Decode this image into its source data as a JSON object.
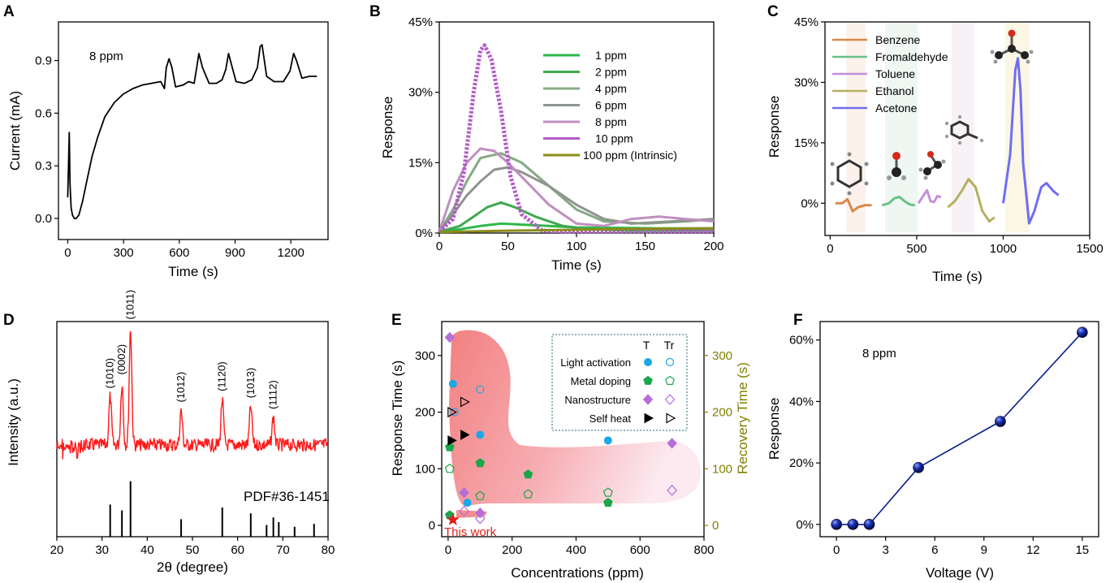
{
  "chart_data": [
    {
      "panel": "A",
      "type": "line",
      "xlabel": "Time (s)",
      "ylabel": "Current (mA)",
      "annotation": "8 ppm",
      "xticks": [
        "0",
        "300",
        "600",
        "900",
        "1200"
      ],
      "yticks": [
        "0.0",
        "0.3",
        "0.6",
        "0.9"
      ],
      "xlim": [
        -50,
        1400
      ],
      "ylim": [
        -0.12,
        1.12
      ],
      "series": [
        {
          "color": "#000000",
          "x": [
            0,
            5,
            8,
            12,
            18,
            25,
            35,
            45,
            60,
            80,
            100,
            130,
            160,
            200,
            250,
            300,
            350,
            400,
            450,
            500,
            520,
            530,
            545,
            560,
            580,
            620,
            650,
            680,
            695,
            705,
            725,
            760,
            800,
            830,
            850,
            865,
            880,
            905,
            950,
            990,
            1020,
            1035,
            1045,
            1070,
            1110,
            1160,
            1195,
            1215,
            1230,
            1260,
            1300,
            1340
          ],
          "y": [
            0.12,
            0.35,
            0.49,
            0.2,
            0.06,
            0.02,
            0.0,
            0.0,
            0.02,
            0.1,
            0.2,
            0.35,
            0.46,
            0.58,
            0.66,
            0.71,
            0.74,
            0.76,
            0.77,
            0.78,
            0.74,
            0.86,
            0.91,
            0.86,
            0.75,
            0.76,
            0.78,
            0.77,
            0.87,
            0.94,
            0.86,
            0.77,
            0.77,
            0.79,
            0.85,
            0.94,
            0.88,
            0.78,
            0.77,
            0.79,
            0.86,
            0.98,
            0.99,
            0.81,
            0.78,
            0.78,
            0.84,
            0.94,
            0.9,
            0.8,
            0.81,
            0.81
          ]
        }
      ]
    },
    {
      "panel": "B",
      "type": "line",
      "xlabel": "Time (s)",
      "ylabel": "Response",
      "xticks": [
        "0",
        "50",
        "100",
        "150",
        "200"
      ],
      "yticks": [
        "0%",
        "15%",
        "30%",
        "45%"
      ],
      "xlim": [
        0,
        200
      ],
      "ylim": [
        0,
        45
      ],
      "series": [
        {
          "name": "1  ppm",
          "color": "#2eb84a",
          "x": [
            0,
            15,
            30,
            45,
            60,
            80,
            100,
            130,
            160,
            200
          ],
          "y": [
            0.3,
            0.8,
            1.5,
            2.0,
            1.8,
            1.5,
            1.2,
            1.1,
            1.0,
            1.0
          ]
        },
        {
          "name": "2  ppm",
          "color": "#3fa84f",
          "x": [
            0,
            15,
            25,
            35,
            45,
            55,
            70,
            90,
            110,
            140,
            200
          ],
          "y": [
            0.3,
            1.5,
            3.5,
            5.5,
            6.5,
            5.5,
            3.5,
            1.5,
            0.8,
            0.5,
            0.5
          ]
        },
        {
          "name": "4  ppm",
          "color": "#86a886",
          "x": [
            0,
            10,
            20,
            30,
            45,
            60,
            80,
            100,
            120,
            150,
            180,
            200
          ],
          "y": [
            0.3,
            5,
            11,
            16,
            17,
            15,
            10,
            5,
            2.5,
            2,
            2.5,
            3
          ]
        },
        {
          "name": "6  ppm",
          "color": "#8e948e",
          "x": [
            0,
            10,
            20,
            30,
            40,
            50,
            60,
            80,
            100,
            120,
            140,
            170,
            200
          ],
          "y": [
            0.3,
            4,
            8,
            11,
            13.5,
            14,
            13,
            10,
            6,
            3,
            2,
            2.5,
            3
          ]
        },
        {
          "name": "8  ppm",
          "color": "#bf8fbf",
          "x": [
            0,
            10,
            20,
            30,
            40,
            50,
            60,
            80,
            100,
            120,
            140,
            160,
            180,
            200
          ],
          "y": [
            0.3,
            9,
            15,
            18,
            17.5,
            15,
            12,
            6,
            2,
            1.5,
            3,
            3.5,
            3,
            2.5
          ]
        },
        {
          "name": "10 ppm",
          "color": "#b25cc8",
          "x": [
            0,
            10,
            18,
            25,
            30,
            33,
            38,
            45,
            52,
            60,
            75,
            100,
            200
          ],
          "y": [
            0.3,
            3,
            13,
            30,
            39,
            40,
            37,
            26,
            12,
            4,
            0.5,
            0.3,
            0.3
          ]
        },
        {
          "name": "100 ppm (Intrinsic)",
          "color": "#8c8c1a",
          "x": [
            0,
            50,
            100,
            150,
            200
          ],
          "y": [
            0.2,
            0.5,
            0.7,
            0.9,
            1.0
          ]
        }
      ]
    },
    {
      "panel": "C",
      "type": "line",
      "xlabel": "Time (s)",
      "ylabel": "Response",
      "xticks": [
        "0",
        "500",
        "1000",
        "1500"
      ],
      "yticks": [
        "0%",
        "15%",
        "30%",
        "45%"
      ],
      "xlim": [
        -30,
        1500
      ],
      "ylim": [
        -8,
        45
      ],
      "series": [
        {
          "name": "Benzene",
          "color": "#d9874a",
          "x": [
            30,
            70,
            100,
            130,
            160,
            200,
            240
          ],
          "y": [
            0,
            0,
            1,
            -2,
            -1,
            -0.5,
            -0.5
          ]
        },
        {
          "name": "Fromaldehyde",
          "color": "#6cc089",
          "x": [
            300,
            340,
            370,
            400,
            430,
            460,
            490
          ],
          "y": [
            -0.5,
            0,
            1.2,
            1.6,
            0.5,
            -0.3,
            -0.5
          ]
        },
        {
          "name": "Toluene",
          "color": "#c58fdc",
          "x": [
            510,
            540,
            560,
            580,
            600,
            620,
            640
          ],
          "y": [
            0,
            2,
            3.2,
            0.5,
            0.3,
            1.8,
            1.5
          ]
        },
        {
          "name": "Ethanol",
          "color": "#b5b060",
          "x": [
            680,
            720,
            760,
            800,
            840,
            880,
            920,
            950
          ],
          "y": [
            -1,
            0.5,
            3,
            6,
            4,
            -2,
            -4.5,
            -3.5
          ]
        },
        {
          "name": "Acetone",
          "color": "#6f6ef2",
          "x": [
            1000,
            1040,
            1070,
            1085,
            1100,
            1115,
            1150,
            1180,
            1220,
            1250,
            1290,
            1320
          ],
          "y": [
            0,
            12,
            33,
            36,
            28,
            10,
            -5,
            -2,
            4,
            5,
            3,
            2
          ]
        }
      ],
      "legend": [
        "Benzene",
        "Fromaldehyde",
        "Toluene",
        "Ethanol",
        "Acetone"
      ]
    },
    {
      "panel": "D",
      "type": "line",
      "xlabel": "2θ (degree)",
      "ylabel": "Intensity (a.u.)",
      "xticks": [
        "20",
        "30",
        "40",
        "50",
        "60",
        "70",
        "80"
      ],
      "xlim": [
        20,
        80
      ],
      "reference": "PDF#36-1451",
      "peaks": [
        {
          "x": 31.8,
          "label": "(1010)",
          "h": 0.35
        },
        {
          "x": 34.4,
          "label": "(0002)",
          "h": 0.45
        },
        {
          "x": 36.3,
          "label": "(1011)",
          "h": 0.85
        },
        {
          "x": 47.5,
          "label": "(1012)",
          "h": 0.25
        },
        {
          "x": 56.6,
          "label": "(1120)",
          "h": 0.33
        },
        {
          "x": 62.9,
          "label": "(1013)",
          "h": 0.28
        },
        {
          "x": 67.9,
          "label": "(1112)",
          "h": 0.2
        }
      ],
      "ref_lines": [
        {
          "x": 31.8,
          "h": 0.55
        },
        {
          "x": 34.4,
          "h": 0.45
        },
        {
          "x": 36.3,
          "h": 0.95
        },
        {
          "x": 47.5,
          "h": 0.3
        },
        {
          "x": 56.6,
          "h": 0.5
        },
        {
          "x": 62.9,
          "h": 0.4
        },
        {
          "x": 66.4,
          "h": 0.2
        },
        {
          "x": 67.9,
          "h": 0.33
        },
        {
          "x": 69.1,
          "h": 0.25
        },
        {
          "x": 72.6,
          "h": 0.17
        },
        {
          "x": 76.9,
          "h": 0.22
        }
      ]
    },
    {
      "panel": "E",
      "type": "scatter",
      "xlabel": "Concentrations (ppm)",
      "ylabel": "Response Time (s)",
      "y2label": "Recovery Time (s)",
      "xticks": [
        "0",
        "200",
        "400",
        "600",
        "800"
      ],
      "yticks": [
        "0",
        "100",
        "200",
        "300"
      ],
      "y2ticks": [
        "0",
        "100",
        "200",
        "300"
      ],
      "xlim": [
        -20,
        800
      ],
      "ylim": [
        -20,
        360
      ],
      "legend_header": [
        "T",
        "Tr"
      ],
      "legend": [
        {
          "name": "Light activation",
          "color": "#1aa7e8",
          "marker": "circle"
        },
        {
          "name": "Metal doping",
          "color": "#1aa64a",
          "marker": "pentagon"
        },
        {
          "name": "Nanostructure",
          "color": "#b46ed8",
          "marker": "diamond"
        },
        {
          "name": "Self heat",
          "color": "#000000",
          "marker": "triangle"
        }
      ],
      "annotation": "This work",
      "annotation_color": "#e0201a",
      "points": [
        {
          "x": 15,
          "y": 250,
          "m": "circle",
          "fill": true,
          "c": "#1aa7e8"
        },
        {
          "x": 100,
          "y": 160,
          "m": "circle",
          "fill": true,
          "c": "#1aa7e8"
        },
        {
          "x": 500,
          "y": 150,
          "m": "circle",
          "fill": true,
          "c": "#1aa7e8"
        },
        {
          "x": 60,
          "y": 40,
          "m": "circle",
          "fill": true,
          "c": "#1aa7e8"
        },
        {
          "x": 100,
          "y": 240,
          "m": "circle",
          "fill": false,
          "c": "#1aa7e8"
        },
        {
          "x": 20,
          "y": 200,
          "m": "circle",
          "fill": false,
          "c": "#1aa7e8"
        },
        {
          "x": 5,
          "y": 138,
          "m": "pentagon",
          "fill": true,
          "c": "#1aa64a"
        },
        {
          "x": 100,
          "y": 110,
          "m": "pentagon",
          "fill": true,
          "c": "#1aa64a"
        },
        {
          "x": 250,
          "y": 90,
          "m": "pentagon",
          "fill": true,
          "c": "#1aa64a"
        },
        {
          "x": 500,
          "y": 40,
          "m": "pentagon",
          "fill": true,
          "c": "#1aa64a"
        },
        {
          "x": 5,
          "y": 18,
          "m": "pentagon",
          "fill": true,
          "c": "#1aa64a"
        },
        {
          "x": 5,
          "y": 100,
          "m": "pentagon",
          "fill": false,
          "c": "#1aa64a"
        },
        {
          "x": 100,
          "y": 52,
          "m": "pentagon",
          "fill": false,
          "c": "#1aa64a"
        },
        {
          "x": 250,
          "y": 55,
          "m": "pentagon",
          "fill": false,
          "c": "#1aa64a"
        },
        {
          "x": 500,
          "y": 58,
          "m": "pentagon",
          "fill": false,
          "c": "#1aa64a"
        },
        {
          "x": 5,
          "y": 332,
          "m": "diamond",
          "fill": true,
          "c": "#b46ed8"
        },
        {
          "x": 50,
          "y": 58,
          "m": "diamond",
          "fill": true,
          "c": "#b46ed8"
        },
        {
          "x": 700,
          "y": 145,
          "m": "diamond",
          "fill": true,
          "c": "#b46ed8"
        },
        {
          "x": 100,
          "y": 22,
          "m": "diamond",
          "fill": true,
          "c": "#b46ed8"
        },
        {
          "x": 700,
          "y": 62,
          "m": "diamond",
          "fill": false,
          "c": "#b46ed8"
        },
        {
          "x": 50,
          "y": 25,
          "m": "diamond",
          "fill": false,
          "c": "#b46ed8"
        },
        {
          "x": 100,
          "y": 12,
          "m": "diamond",
          "fill": false,
          "c": "#b46ed8"
        },
        {
          "x": 10,
          "y": 150,
          "m": "triangle",
          "fill": true,
          "c": "#000000"
        },
        {
          "x": 50,
          "y": 160,
          "m": "triangle",
          "fill": true,
          "c": "#000000"
        },
        {
          "x": 50,
          "y": 218,
          "m": "triangle",
          "fill": false,
          "c": "#000000"
        },
        {
          "x": 10,
          "y": 200,
          "m": "triangle",
          "fill": false,
          "c": "#000000"
        },
        {
          "x": 15,
          "y": 10,
          "m": "star",
          "fill": true,
          "c": "#e0201a"
        }
      ]
    },
    {
      "panel": "F",
      "type": "line",
      "xlabel": "Voltage (V)",
      "ylabel": "Response",
      "annotation": "8 ppm",
      "xticks": [
        "0",
        "3",
        "6",
        "9",
        "12",
        "15"
      ],
      "yticks": [
        "0%",
        "20%",
        "40%",
        "60%"
      ],
      "xlim": [
        -1,
        16
      ],
      "ylim": [
        -4,
        66
      ],
      "color": "#0b1f8e",
      "x": [
        0,
        1,
        2,
        5,
        10,
        15
      ],
      "y": [
        0,
        0,
        0,
        18.5,
        33.5,
        62.5
      ]
    }
  ]
}
